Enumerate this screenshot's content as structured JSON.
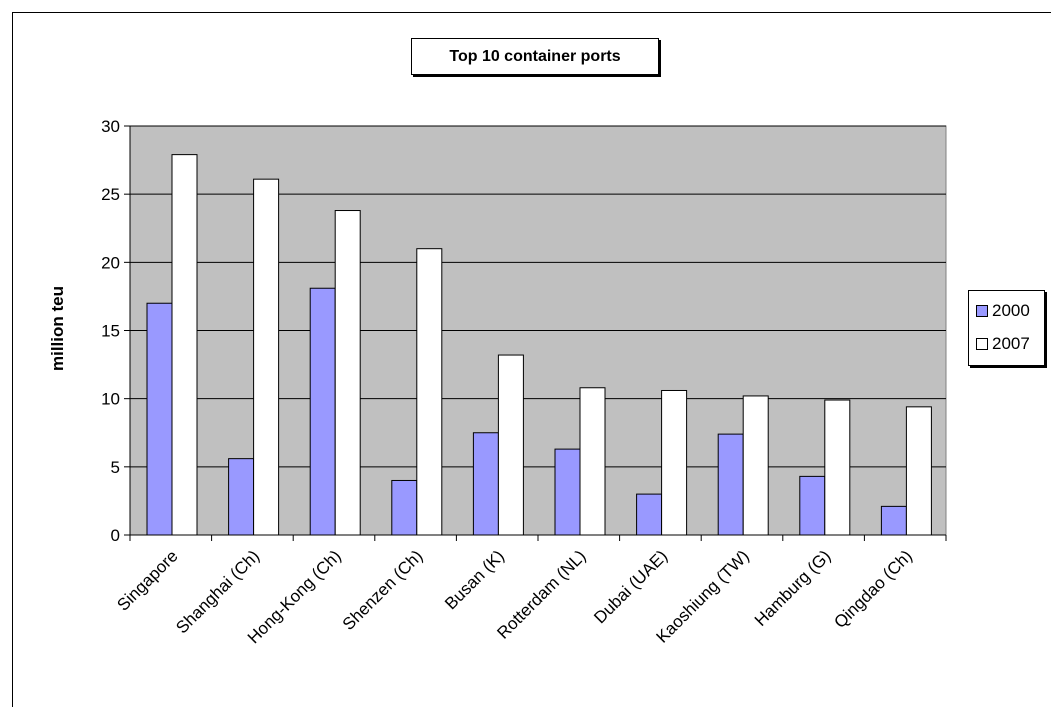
{
  "chart_data": {
    "type": "bar",
    "title": "Top 10 container ports",
    "xlabel": "",
    "ylabel": "million teu",
    "ylim": [
      0,
      30
    ],
    "yticks": [
      0,
      5,
      10,
      15,
      20,
      25,
      30
    ],
    "grid": true,
    "legend_position": "right",
    "categories": [
      "Singapore",
      "Shanghai (Ch)",
      "Hong-Kong (Ch)",
      "Shenzen (Ch)",
      "Busan (K)",
      "Rotterdam (NL)",
      "Dubai (UAE)",
      "Kaoshiung (TW)",
      "Hamburg (G)",
      "Qingdao (Ch)"
    ],
    "series": [
      {
        "name": "2000",
        "color": "#9999ff",
        "values": [
          17.0,
          5.6,
          18.1,
          4.0,
          7.5,
          6.3,
          3.0,
          7.4,
          4.3,
          2.1
        ]
      },
      {
        "name": "2007",
        "color": "#ffffff",
        "values": [
          27.9,
          26.1,
          23.8,
          21.0,
          13.2,
          10.8,
          10.6,
          10.2,
          9.9,
          9.4
        ]
      }
    ],
    "plot_background": "#c0c0c0"
  }
}
